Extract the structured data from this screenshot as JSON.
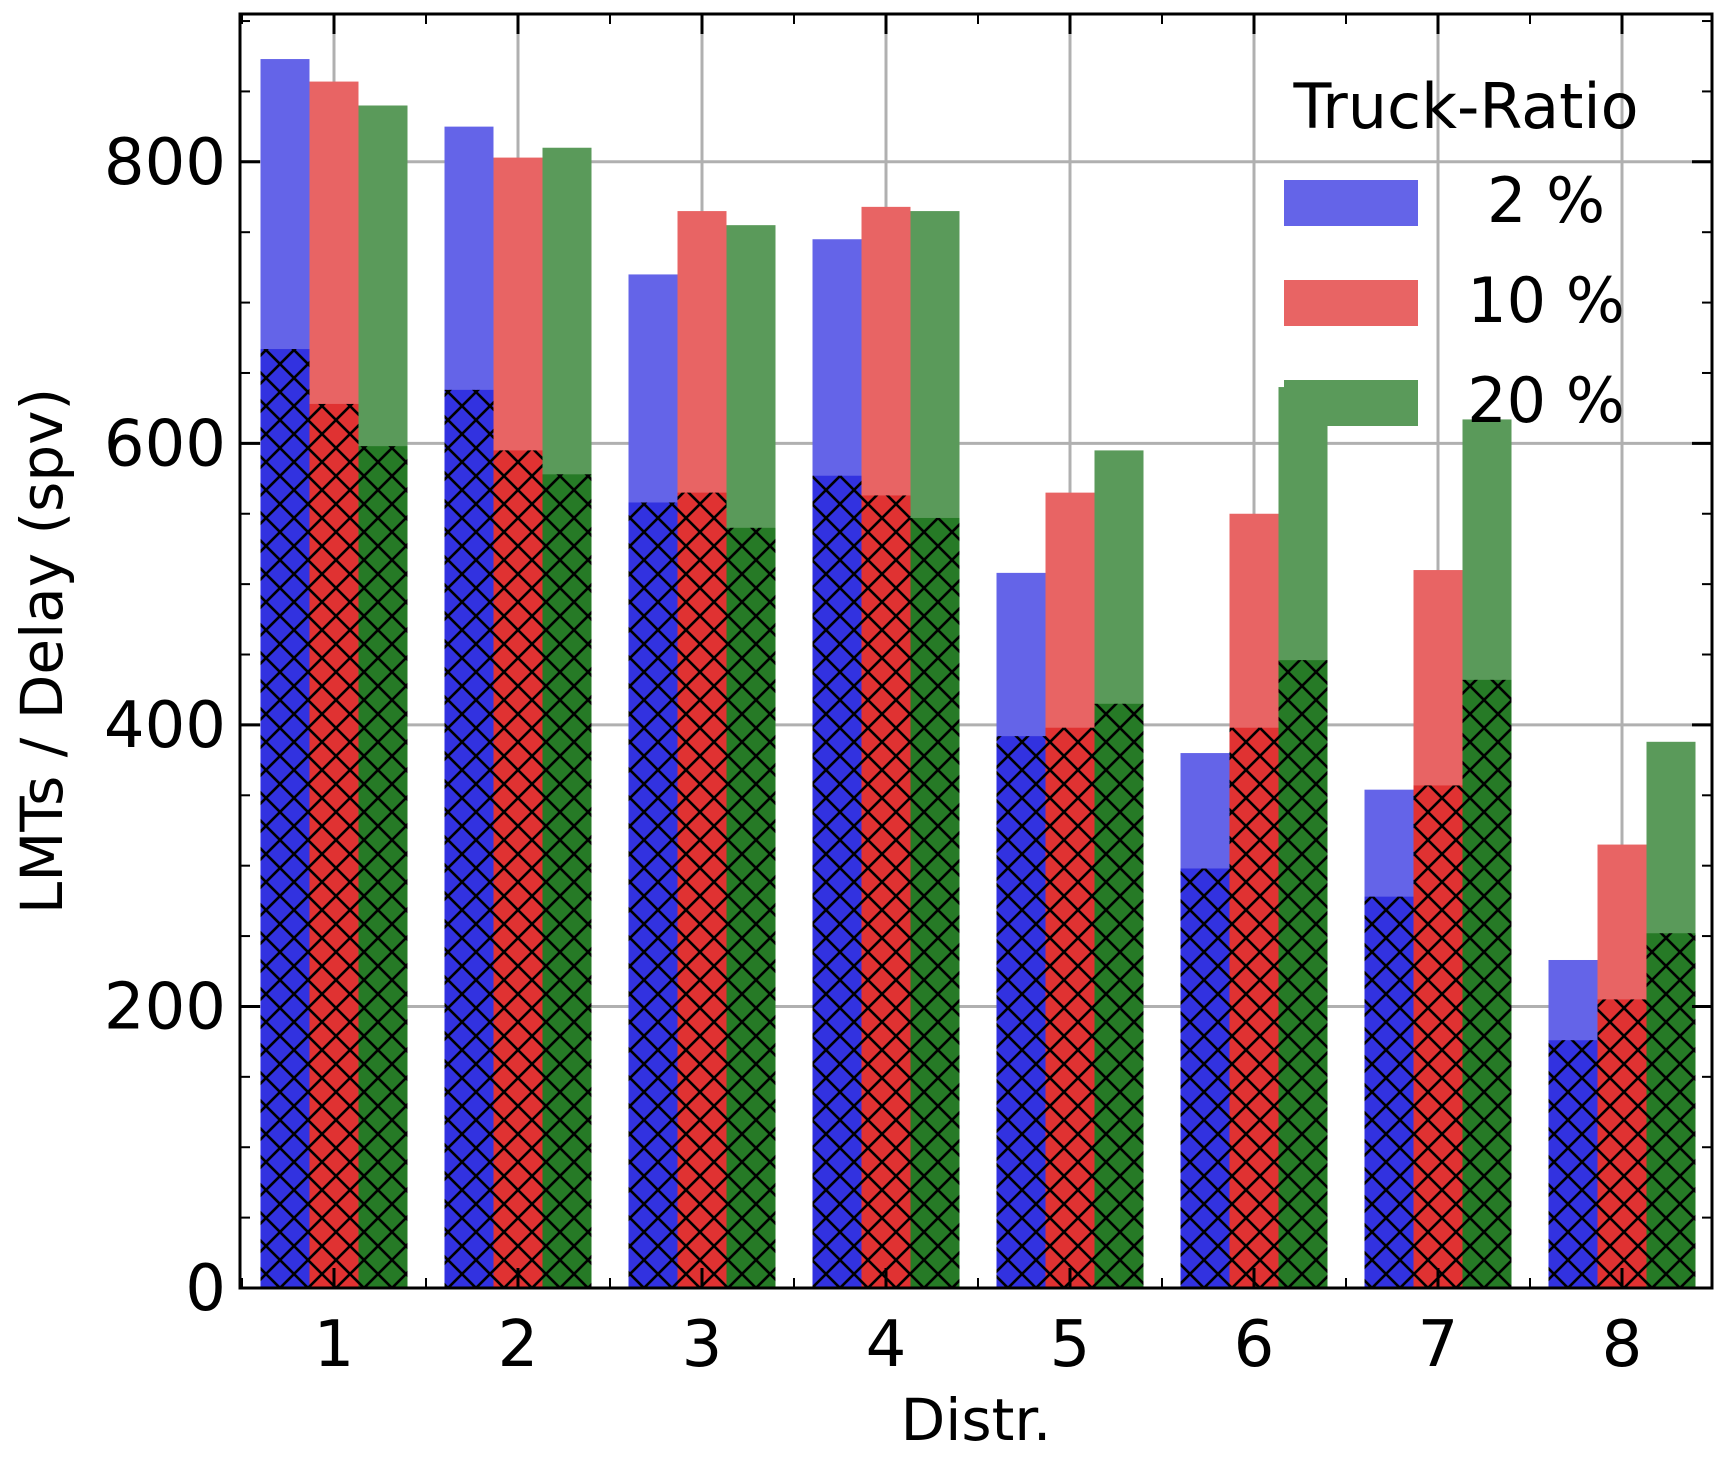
{
  "chart_data": {
    "type": "bar",
    "xlabel": "Distr.",
    "ylabel": "LMTs / Delay (spv)",
    "categories": [
      "1",
      "2",
      "3",
      "4",
      "5",
      "6",
      "7",
      "8"
    ],
    "ylim": [
      0,
      905
    ],
    "yticks": [
      0,
      200,
      400,
      600,
      800
    ],
    "grid": true,
    "legend": {
      "title": "Truck-Ratio",
      "position": "top-right"
    },
    "series": [
      {
        "name": "2 %",
        "color": "#6464e8",
        "hatch_color": "#3232e0",
        "values": [
          873,
          825,
          720,
          745,
          508,
          380,
          354,
          233
        ],
        "hatched_values": [
          667,
          638,
          558,
          577,
          392,
          298,
          278,
          176
        ]
      },
      {
        "name": "10 %",
        "color": "#e86464",
        "hatch_color": "#e03232",
        "values": [
          857,
          803,
          765,
          768,
          565,
          550,
          510,
          315
        ],
        "hatched_values": [
          628,
          595,
          565,
          563,
          398,
          398,
          357,
          205
        ]
      },
      {
        "name": "20 %",
        "color": "#5a9a5a",
        "hatch_color": "#267a26",
        "values": [
          840,
          810,
          755,
          765,
          595,
          640,
          617,
          388
        ],
        "hatched_values": [
          598,
          578,
          540,
          547,
          415,
          446,
          432,
          252
        ]
      }
    ]
  }
}
